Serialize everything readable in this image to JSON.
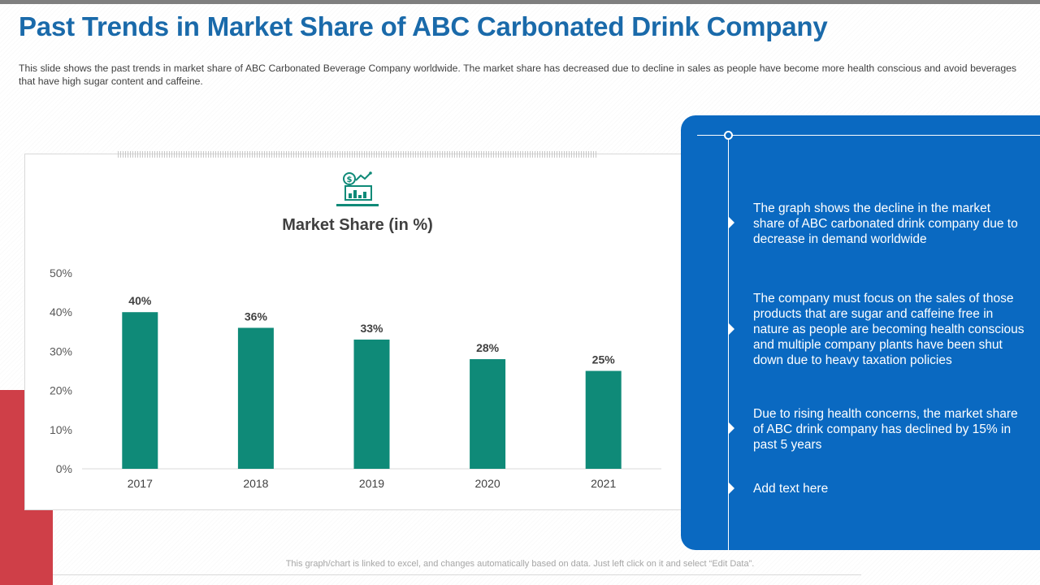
{
  "header": {
    "title": "Past Trends in Market Share of ABC Carbonated Drink Company",
    "description": "This slide shows the past trends in market share of ABC Carbonated Beverage Company worldwide. The market share has decreased due to decline in sales as people have become more health conscious and avoid beverages that have high sugar content and caffeine."
  },
  "chart_data": {
    "type": "bar",
    "title": "Market Share (in %)",
    "categories": [
      "2017",
      "2018",
      "2019",
      "2020",
      "2021"
    ],
    "values": [
      40,
      36,
      33,
      28,
      25
    ],
    "data_labels": [
      "40%",
      "36%",
      "33%",
      "28%",
      "25%"
    ],
    "y_ticks": [
      "0%",
      "10%",
      "20%",
      "30%",
      "40%",
      "50%"
    ],
    "ylim": [
      0,
      50
    ],
    "xlabel": "",
    "ylabel": "",
    "grid": false,
    "bar_color": "#0f8a78"
  },
  "panel": {
    "points": [
      "The graph shows the decline in the market share of ABC carbonated drink company due to decrease in demand worldwide",
      "The company must focus on the sales of those products that are sugar and caffeine free in nature as people are becoming health conscious and multiple company plants have been shut down due to heavy taxation policies",
      "Due to rising health concerns, the market share of ABC drink company has declined by 15% in past 5 years",
      "Add text here"
    ]
  },
  "footer": {
    "note": "This graph/chart is linked to excel, and changes automatically based on data. Just left click on it and select “Edit Data”."
  },
  "colors": {
    "title": "#1a6aaa",
    "panel": "#0a69c1",
    "accent_red": "#cf3f48",
    "bar": "#0f8a78"
  }
}
